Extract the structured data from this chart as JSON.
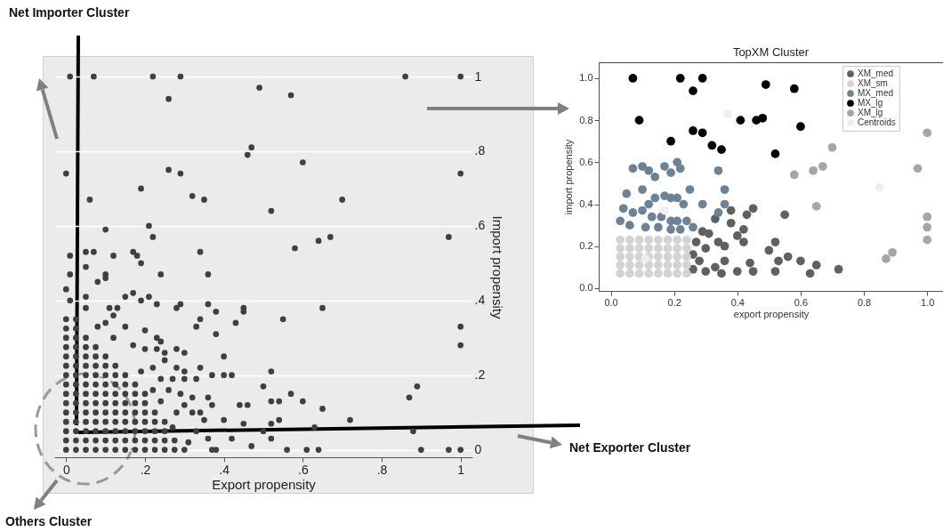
{
  "chart_data": [
    {
      "type": "scatter",
      "xlabel": "Export propensity",
      "ylabel": "Import propensity",
      "color": "#3f3f3f",
      "marker": "circle",
      "grid": "y",
      "annotations": [
        "Net Importer Cluster",
        "Net Exporter Cluster",
        "Others Cluster"
      ],
      "xlim": [
        -0.03,
        1.03
      ],
      "ylim": [
        -0.02,
        1
      ],
      "xticks": [
        {
          "value": 0,
          "label": "0"
        },
        {
          "value": 0.2,
          "label": ".2"
        },
        {
          "value": 0.4,
          "label": ".4"
        },
        {
          "value": 0.6,
          "label": ".6"
        },
        {
          "value": 0.8,
          "label": ".8"
        },
        {
          "value": 1,
          "label": "1"
        }
      ],
      "yticks": [
        {
          "value": 0,
          "label": "0"
        },
        {
          "value": 0.2,
          "label": ".2"
        },
        {
          "value": 0.4,
          "label": ".4"
        },
        {
          "value": 0.6,
          "label": ".6"
        },
        {
          "value": 0.8,
          "label": ".8"
        },
        {
          "value": 1,
          "label": "1"
        }
      ],
      "x": [
        0.01,
        0.07,
        0.22,
        0.29,
        0.86,
        1,
        0.49,
        0.26,
        0.57,
        0.47,
        0.46,
        0.6,
        0,
        0.26,
        0.29,
        1,
        0.19,
        0.06,
        0.32,
        0.35,
        0.7,
        0.52,
        0.1,
        0.21,
        0.22,
        0.97,
        0.67,
        0.64,
        0.58,
        0.01,
        0.05,
        0.07,
        0.12,
        0.17,
        0.18,
        0.19,
        0.34,
        0.05,
        0.01,
        0.24,
        0.36,
        0.08,
        0.1,
        0.1,
        0,
        0.01,
        0.05,
        0.15,
        0.17,
        0.19,
        0.21,
        0.23,
        0.36,
        0.11,
        0.13,
        0.28,
        0.29,
        0.45,
        0.45,
        0.38,
        0.34,
        0.43,
        0.55,
        0.65,
        1,
        1,
        0.33,
        0.38,
        0.24,
        0.4,
        0.28,
        0.3,
        0.25,
        0.52,
        0.4,
        0.42,
        0.34,
        0.37,
        0.33,
        0.3,
        0.5,
        0.89,
        0.87,
        0.57,
        0.6,
        0.65,
        0.72,
        0.52,
        0.54,
        0.44,
        0.46,
        0.36,
        0.37,
        0.34,
        0.4,
        0.45,
        0.52,
        0.54,
        0.63,
        0.5,
        0.88,
        0.52,
        0.42,
        0.36,
        0.47,
        0.56,
        0.61,
        0.64,
        0.9,
        0.97,
        1,
        0.37,
        0.38,
        0,
        0.025,
        0.05,
        0.075,
        0.1,
        0.125,
        0.15,
        0.175,
        0.2,
        0.225,
        0.25,
        0.275,
        0.3,
        0,
        0.025,
        0.05,
        0.075,
        0.1,
        0.125,
        0.15,
        0.175,
        0.2,
        0.225,
        0.25,
        0.275,
        0,
        0.025,
        0.05,
        0.075,
        0.1,
        0.125,
        0.15,
        0.175,
        0.2,
        0.225,
        0.25,
        0,
        0.025,
        0.05,
        0.075,
        0.1,
        0.125,
        0.15,
        0.175,
        0.2,
        0.225,
        0.25,
        0,
        0.025,
        0.05,
        0.075,
        0.1,
        0.125,
        0.15,
        0.175,
        0.2,
        0.225,
        0,
        0.025,
        0.05,
        0.075,
        0.1,
        0.125,
        0.15,
        0.175,
        0.2,
        0,
        0.025,
        0.05,
        0.075,
        0.1,
        0.125,
        0.15,
        0.175,
        0.2,
        0,
        0.025,
        0.05,
        0.075,
        0.1,
        0.125,
        0.15,
        0.175,
        0,
        0.025,
        0.05,
        0.075,
        0.1,
        0.125,
        0.15,
        0,
        0.025,
        0.05,
        0.075,
        0.1,
        0.125,
        0,
        0.025,
        0.05,
        0.075,
        0.1,
        0,
        0.025,
        0.05,
        0.075,
        0,
        0.025,
        0.05,
        0,
        0.025,
        0,
        0.025,
        0.17,
        0.2,
        0.23,
        0.25,
        0.28,
        0.3,
        0.27,
        0.22,
        0.24,
        0.26,
        0.29,
        0.32,
        0.3,
        0.32,
        0.35,
        0.33,
        0.31,
        0.28,
        0.24,
        0.27,
        0.22,
        0.19,
        0.12,
        0.15,
        0.1,
        0.05,
        0.12,
        0.2,
        0.23,
        0.08
      ],
      "values": [
        1,
        1,
        1,
        1,
        1,
        1,
        0.97,
        0.94,
        0.95,
        0.81,
        0.79,
        0.77,
        0.74,
        0.75,
        0.74,
        0.74,
        0.7,
        0.67,
        0.68,
        0.67,
        0.67,
        0.64,
        0.59,
        0.6,
        0.57,
        0.57,
        0.57,
        0.56,
        0.54,
        0.52,
        0.53,
        0.53,
        0.52,
        0.53,
        0.52,
        0.5,
        0.53,
        0.49,
        0.47,
        0.47,
        0.47,
        0.45,
        0.47,
        0.46,
        0.43,
        0.4,
        0.41,
        0.41,
        0.42,
        0.4,
        0.41,
        0.39,
        0.39,
        0.38,
        0.38,
        0.38,
        0.39,
        0.38,
        0.37,
        0.37,
        0.35,
        0.34,
        0.35,
        0.38,
        0.33,
        0.28,
        0.33,
        0.31,
        0.29,
        0.25,
        0.27,
        0.26,
        0.26,
        0.21,
        0.2,
        0.2,
        0.22,
        0.2,
        0.19,
        0.19,
        0.17,
        0.17,
        0.14,
        0.15,
        0.13,
        0.11,
        0.08,
        0.13,
        0.13,
        0.12,
        0.12,
        0.14,
        0.12,
        0.1,
        0.08,
        0.07,
        0.07,
        0.08,
        0.06,
        0.05,
        0.05,
        0.03,
        0.03,
        0.03,
        0.01,
        0,
        0,
        0,
        0,
        0,
        0,
        0,
        0,
        0,
        0,
        0,
        0,
        0,
        0,
        0,
        0,
        0,
        0,
        0,
        0,
        0,
        0.025,
        0.025,
        0.025,
        0.025,
        0.025,
        0.025,
        0.025,
        0.025,
        0.025,
        0.025,
        0.025,
        0.025,
        0.05,
        0.05,
        0.05,
        0.05,
        0.05,
        0.05,
        0.05,
        0.05,
        0.05,
        0.05,
        0.05,
        0.075,
        0.075,
        0.075,
        0.075,
        0.075,
        0.075,
        0.075,
        0.075,
        0.075,
        0.075,
        0.075,
        0.1,
        0.1,
        0.1,
        0.1,
        0.1,
        0.1,
        0.1,
        0.1,
        0.1,
        0.1,
        0.125,
        0.125,
        0.125,
        0.125,
        0.125,
        0.125,
        0.125,
        0.125,
        0.125,
        0.15,
        0.15,
        0.15,
        0.15,
        0.15,
        0.15,
        0.15,
        0.15,
        0.15,
        0.175,
        0.175,
        0.175,
        0.175,
        0.175,
        0.175,
        0.175,
        0.175,
        0.2,
        0.2,
        0.2,
        0.2,
        0.2,
        0.2,
        0.2,
        0.225,
        0.225,
        0.225,
        0.225,
        0.225,
        0.225,
        0.25,
        0.25,
        0.25,
        0.25,
        0.25,
        0.275,
        0.275,
        0.275,
        0.275,
        0.3,
        0.3,
        0.3,
        0.325,
        0.325,
        0.35,
        0.35,
        0.28,
        0.27,
        0.27,
        0.24,
        0.22,
        0.21,
        0.19,
        0.22,
        0.19,
        0.16,
        0.15,
        0.14,
        0.12,
        0.1,
        0.08,
        0.05,
        0.02,
        0.1,
        0.13,
        0.06,
        0.16,
        0.21,
        0.3,
        0.33,
        0.34,
        0.38,
        0.36,
        0.32,
        0.3,
        0.33
      ]
    },
    {
      "type": "scatter",
      "title": "TopXM Cluster",
      "xlabel": "export propensity",
      "ylabel": "import propensity",
      "marker": "circle",
      "legend": "top right",
      "xlim": [
        -0.038,
        1.05
      ],
      "ylim": [
        -0.013,
        1.076
      ],
      "xticks": [
        {
          "value": 0,
          "label": "0.0"
        },
        0.2,
        0.4,
        0.6,
        0.8,
        {
          "value": 1,
          "label": "1.0"
        }
      ],
      "yticks": [
        {
          "value": 0,
          "label": "0.0"
        },
        0.2,
        0.4,
        0.6,
        0.8,
        {
          "value": 1,
          "label": "1.0"
        }
      ],
      "series": [
        {
          "name": "XM_med",
          "color": "#606060",
          "x": [
            0.38,
            0.33,
            0.38,
            0.43,
            0.45,
            0.55,
            0.42,
            0.4,
            0.42,
            0.36,
            0.34,
            0.29,
            0.31,
            0.27,
            0.3,
            0.26,
            0.28,
            0.26,
            0.3,
            0.33,
            0.35,
            0.36,
            0.4,
            0.44,
            0.45,
            0.52,
            0.5,
            0.53,
            0.52,
            0.56,
            0.6,
            0.63,
            0.65,
            0.72
          ],
          "values": [
            0.37,
            0.33,
            0.31,
            0.35,
            0.38,
            0.35,
            0.28,
            0.25,
            0.22,
            0.2,
            0.22,
            0.27,
            0.26,
            0.22,
            0.19,
            0.16,
            0.13,
            0.09,
            0.08,
            0.1,
            0.07,
            0.13,
            0.08,
            0.12,
            0.08,
            0.22,
            0.18,
            0.13,
            0.08,
            0.15,
            0.13,
            0.07,
            0.11,
            0.09
          ]
        },
        {
          "name": "XM_sm",
          "color": "#d3d3d3",
          "x": [
            0.03,
            0.06,
            0.09,
            0.12,
            0.15,
            0.18,
            0.21,
            0.24,
            0.03,
            0.06,
            0.09,
            0.12,
            0.15,
            0.18,
            0.21,
            0.24,
            0.03,
            0.06,
            0.09,
            0.12,
            0.15,
            0.18,
            0.21,
            0.24,
            0.03,
            0.06,
            0.09,
            0.12,
            0.15,
            0.18,
            0.21,
            0.24,
            0.03,
            0.06,
            0.09,
            0.12,
            0.15,
            0.18,
            0.21,
            0.24
          ],
          "values": [
            0.07,
            0.07,
            0.07,
            0.07,
            0.07,
            0.07,
            0.07,
            0.07,
            0.11,
            0.11,
            0.11,
            0.11,
            0.11,
            0.11,
            0.11,
            0.11,
            0.15,
            0.15,
            0.15,
            0.15,
            0.15,
            0.15,
            0.15,
            0.15,
            0.19,
            0.19,
            0.19,
            0.19,
            0.19,
            0.19,
            0.19,
            0.19,
            0.23,
            0.23,
            0.23,
            0.23,
            0.23,
            0.23,
            0.23,
            0.23
          ]
        },
        {
          "name": "MX_med",
          "color": "#6e8296",
          "x": [
            0.07,
            0.1,
            0.12,
            0.14,
            0.17,
            0.19,
            0.21,
            0.22,
            0.25,
            0.05,
            0.1,
            0.04,
            0.07,
            0.03,
            0.06,
            0.1,
            0.12,
            0.14,
            0.17,
            0.19,
            0.21,
            0.23,
            0.13,
            0.16,
            0.19,
            0.21,
            0.24,
            0.11,
            0.15,
            0.19,
            0.22,
            0.26,
            0.29,
            0.34,
            0.36,
            0.36,
            0.34
          ],
          "values": [
            0.57,
            0.58,
            0.56,
            0.53,
            0.58,
            0.55,
            0.6,
            0.57,
            0.47,
            0.45,
            0.47,
            0.38,
            0.36,
            0.32,
            0.3,
            0.37,
            0.4,
            0.43,
            0.44,
            0.43,
            0.43,
            0.4,
            0.34,
            0.34,
            0.32,
            0.32,
            0.32,
            0.29,
            0.29,
            0.28,
            0.28,
            0.29,
            0.4,
            0.56,
            0.47,
            0.4,
            0.36
          ]
        },
        {
          "name": "MX_lg",
          "color": "#000000",
          "x": [
            0.07,
            0.22,
            0.29,
            0.26,
            0.49,
            0.58,
            0.09,
            0.41,
            0.46,
            0.48,
            0.6,
            0.26,
            0.29,
            0.19,
            0.32,
            0.35,
            0.52
          ],
          "values": [
            1,
            1,
            1,
            0.94,
            0.97,
            0.95,
            0.8,
            0.8,
            0.8,
            0.81,
            0.77,
            0.75,
            0.74,
            0.7,
            0.68,
            0.66,
            0.64
          ]
        },
        {
          "name": "XM_lg",
          "color": "#a6a6a6",
          "x": [
            0.7,
            0.67,
            0.64,
            0.58,
            1,
            0.97,
            0.65,
            1,
            1,
            1,
            0.89,
            0.87
          ],
          "values": [
            0.67,
            0.58,
            0.56,
            0.54,
            0.74,
            0.57,
            0.39,
            0.34,
            0.29,
            0.23,
            0.17,
            0.14
          ]
        },
        {
          "name": "Centroids",
          "color": "#eeeeee",
          "x": [
            0.37,
            0.85,
            0.11,
            0.17
          ],
          "values": [
            0.83,
            0.48,
            0.14,
            0.37
          ]
        }
      ]
    }
  ]
}
